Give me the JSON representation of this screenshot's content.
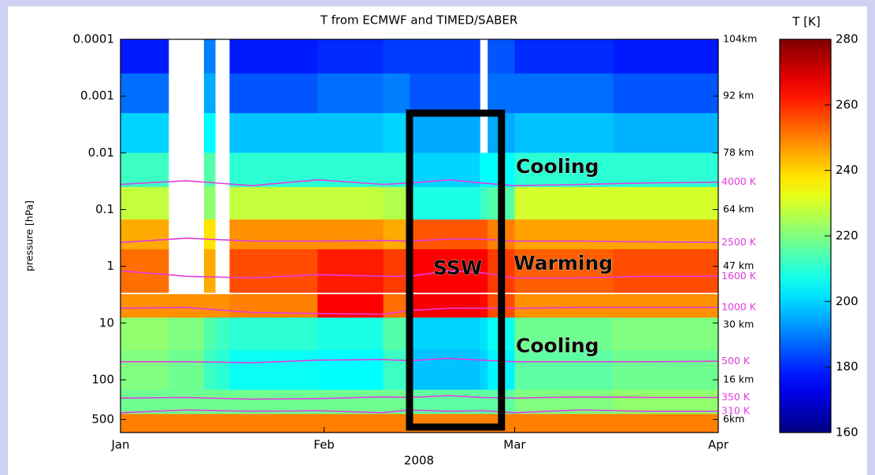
{
  "chart_data": {
    "type": "heatmap",
    "title": "T from ECMWF and TIMED/SABER",
    "xlabel": "2008",
    "ylabel": "pressure [hPa]",
    "xlim": [
      0,
      91
    ],
    "xticks": [
      {
        "value": 0,
        "label": "Jan"
      },
      {
        "value": 31,
        "label": "Feb"
      },
      {
        "value": 60,
        "label": "Mar"
      },
      {
        "value": 91,
        "label": "Apr"
      }
    ],
    "ylim": [
      0.0001,
      850
    ],
    "yscale": "log",
    "yreverse": true,
    "yticks": [
      0.0001,
      0.001,
      0.01,
      0.1,
      1,
      10,
      100,
      500
    ],
    "y2lim": [
      0.0001,
      850
    ],
    "y2ticks": [
      {
        "value": 0.0001,
        "label": "104km"
      },
      {
        "value": 0.001,
        "label": "92 km"
      },
      {
        "value": 0.01,
        "label": "78 km"
      },
      {
        "value": 0.1,
        "label": "64 km"
      },
      {
        "value": 1,
        "label": "47 km"
      },
      {
        "value": 10,
        "label": "30 km"
      },
      {
        "value": 100,
        "label": "16 km"
      },
      {
        "value": 500,
        "label": "6km"
      }
    ],
    "x_edges": [
      0,
      7.3,
      12.7,
      14.4,
      16.6,
      30,
      40,
      44,
      54.7,
      55.9,
      60,
      75,
      91
    ],
    "y_edges": [
      0.0001,
      0.0004,
      0.002,
      0.01,
      0.04,
      0.15,
      0.5,
      2.9,
      3.1,
      8,
      30,
      150,
      400,
      850
    ],
    "z": [
      [
        178,
        null,
        190,
        null,
        178,
        180,
        182,
        182,
        null,
        185,
        180,
        178
      ],
      [
        188,
        null,
        195,
        null,
        185,
        188,
        190,
        185,
        null,
        188,
        188,
        185
      ],
      [
        200,
        null,
        205,
        null,
        198,
        198,
        200,
        195,
        null,
        195,
        198,
        196
      ],
      [
        212,
        null,
        215,
        null,
        210,
        210,
        210,
        200,
        205,
        205,
        210,
        210
      ],
      [
        228,
        null,
        222,
        null,
        228,
        228,
        226,
        208,
        212,
        215,
        230,
        230
      ],
      [
        245,
        null,
        238,
        null,
        248,
        248,
        245,
        255,
        255,
        250,
        246,
        246
      ],
      [
        252,
        null,
        245,
        null,
        256,
        262,
        258,
        265,
        265,
        258,
        254,
        256
      ],
      [
        null,
        null,
        null,
        null,
        null,
        null,
        null,
        null,
        null,
        null,
        null,
        null
      ],
      [
        248,
        248,
        248,
        248,
        250,
        265,
        252,
        266,
        264,
        256,
        248,
        248
      ],
      [
        222,
        220,
        215,
        212,
        210,
        208,
        215,
        200,
        202,
        206,
        218,
        220
      ],
      [
        220,
        218,
        212,
        210,
        206,
        205,
        212,
        198,
        200,
        204,
        216,
        218
      ],
      [
        218,
        218,
        218,
        218,
        218,
        218,
        218,
        216,
        216,
        216,
        220,
        222
      ],
      [
        250,
        250,
        250,
        250,
        250,
        250,
        250,
        250,
        250,
        250,
        250,
        250
      ]
    ],
    "colormap": "jet",
    "colorbar": {
      "label": "T [K]",
      "lim": [
        160,
        280
      ],
      "ticks": [
        160,
        180,
        200,
        220,
        240,
        260,
        280
      ]
    },
    "isentropes": {
      "color": "#e23ce0",
      "x": [
        0,
        10,
        20,
        30,
        40,
        44,
        50,
        55,
        60,
        70,
        80,
        91
      ],
      "series": [
        {
          "name": "4000 K",
          "values": [
            0.036,
            0.031,
            0.038,
            0.03,
            0.036,
            0.034,
            0.03,
            0.034,
            0.038,
            0.036,
            0.034,
            0.033
          ]
        },
        {
          "name": "2500 K",
          "values": [
            0.38,
            0.32,
            0.36,
            0.36,
            0.35,
            0.36,
            0.33,
            0.33,
            0.36,
            0.36,
            0.37,
            0.38
          ]
        },
        {
          "name": "1600 K",
          "values": [
            1.2,
            1.5,
            1.6,
            1.4,
            1.5,
            1.5,
            1.2,
            1.3,
            1.6,
            1.6,
            1.5,
            1.5
          ]
        },
        {
          "name": "1000 K",
          "values": [
            5.5,
            5.3,
            6.5,
            6.8,
            7,
            6,
            5.5,
            5.5,
            5.5,
            5.3,
            5.3,
            5.3
          ]
        },
        {
          "name": "500 K",
          "values": [
            48,
            48,
            50,
            45,
            44,
            46,
            42,
            45,
            48,
            48,
            48,
            47
          ]
        },
        {
          "name": "350 K",
          "values": [
            210,
            205,
            220,
            215,
            200,
            205,
            190,
            205,
            210,
            200,
            205,
            205
          ]
        },
        {
          "name": "310 K",
          "values": [
            380,
            340,
            360,
            350,
            380,
            340,
            360,
            350,
            380,
            340,
            360,
            360
          ]
        }
      ]
    },
    "highlight": {
      "x": [
        44,
        58
      ],
      "y": [
        0.002,
        680
      ]
    },
    "annotations": [
      "Cooling",
      "Warming",
      "SSW",
      "Cooling"
    ]
  }
}
